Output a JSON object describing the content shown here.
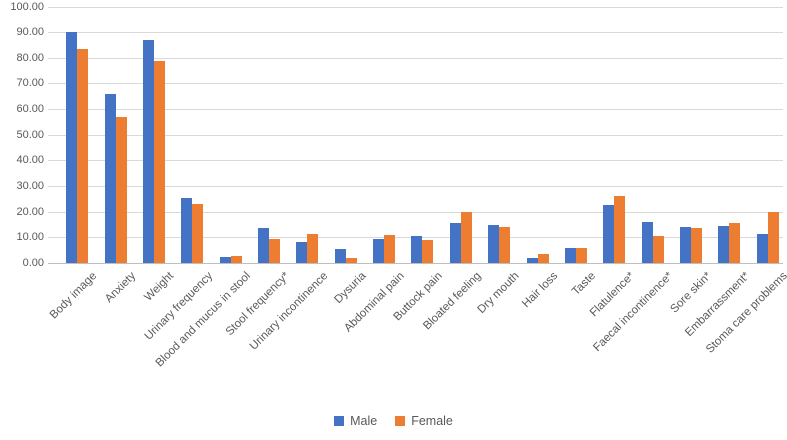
{
  "chart_data": {
    "type": "bar",
    "title": "",
    "xlabel": "",
    "ylabel": "",
    "ylim": [
      0,
      100
    ],
    "ytick_step": 10,
    "ytick_labels": [
      "0.00",
      "10.00",
      "20.00",
      "30.00",
      "40.00",
      "50.00",
      "60.00",
      "70.00",
      "80.00",
      "90.00",
      "100.00"
    ],
    "grid": "horizontal",
    "legend_position": "bottom",
    "categories": [
      "Body image",
      "Anxiety",
      "Weight",
      "Urinary frequency",
      "Blood and mucus in stool",
      "Stool frequency*",
      "Urinary incontinence",
      "Dysuria",
      "Abdominal pain",
      "Buttock pain",
      "Bloated feeling",
      "Dry mouth",
      "Hair loss",
      "Taste",
      "Flatulence*",
      "Faecal incontinence*",
      "Sore skin*",
      "Embarrassment*",
      "Stoma care problems"
    ],
    "series": [
      {
        "name": "Male",
        "color": "#4472C4",
        "values": [
          90.0,
          66.0,
          87.0,
          25.5,
          2.5,
          13.5,
          8.0,
          5.5,
          9.5,
          10.5,
          15.5,
          15.0,
          2.0,
          6.0,
          22.5,
          16.0,
          14.0,
          14.5,
          11.5
        ]
      },
      {
        "name": "Female",
        "color": "#ED7D31",
        "values": [
          83.5,
          57.0,
          78.8,
          23.0,
          2.8,
          9.5,
          11.5,
          2.0,
          11.0,
          9.0,
          20.0,
          14.0,
          3.5,
          6.0,
          26.0,
          10.5,
          13.5,
          15.5,
          20.0
        ]
      }
    ],
    "gridline_color": "#d9d9d9",
    "axis_label_color": "#595959"
  }
}
